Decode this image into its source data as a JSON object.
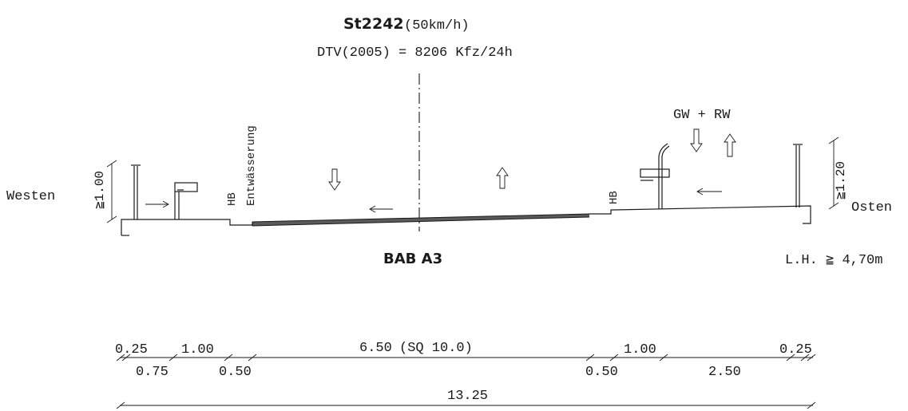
{
  "header": {
    "road_id": "St2242",
    "speed": "(50km/h)",
    "traffic": "DTV(2005) = 8206 Kfz/24h"
  },
  "labels": {
    "west": "Westen",
    "east": "Osten",
    "drainage": "Entwässerung",
    "hb_left": "HB",
    "hb_right": "HB",
    "gw_rw": "GW + RW",
    "bab": "BAB A3",
    "clearance": "L.H. ≧ 4,70m",
    "rail_left": "≧1.00",
    "rail_right": "≧1.20"
  },
  "dimensions": {
    "d1": "0.25",
    "d2": "1.00",
    "d3": "6.50",
    "d3_sq": "(SQ 10.0)",
    "d4": "1.00",
    "d5": "0.25",
    "d6": "0.75",
    "d7": "0.50",
    "d8": "0.50",
    "d9": "2.50",
    "total": "13.25"
  }
}
